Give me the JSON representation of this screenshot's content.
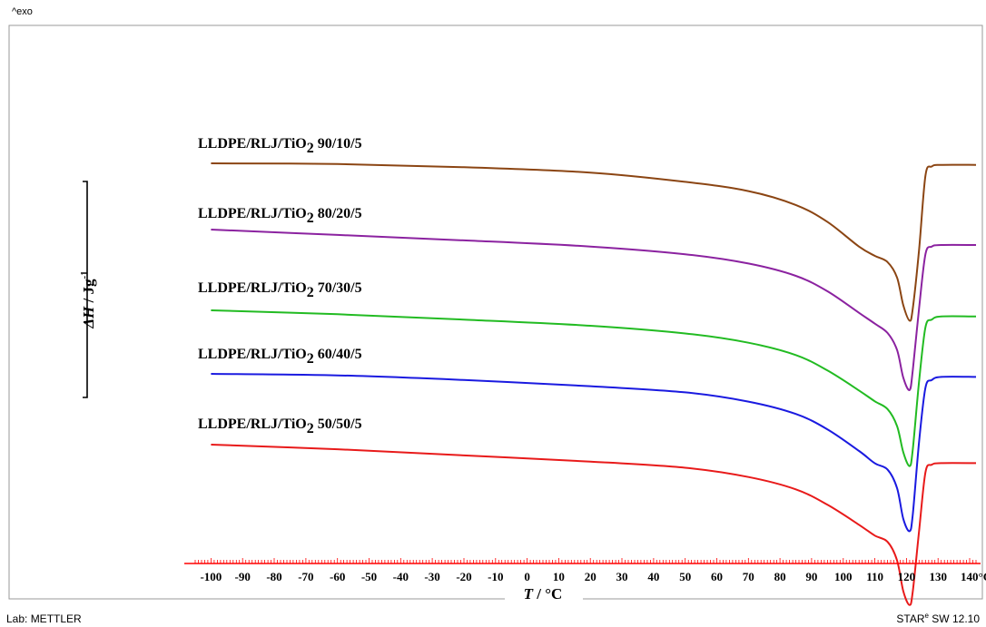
{
  "corner_label": "^exo",
  "footer": {
    "left": "Lab: METTLER",
    "right_brand": "STAR",
    "right_sup": "e",
    "right_version": " SW 12.10"
  },
  "colors": {
    "frame": "#999999",
    "ruler": "#ff0000",
    "axis_line": "#000000"
  },
  "chart_data": {
    "type": "line",
    "xlabel_italic": "T",
    "xlabel_rest": " / °C",
    "ylabel_italic": "ΔH",
    "ylabel_rest": " / Jg",
    "ylabel_sup": "-1",
    "xlim": [
      -105,
      142
    ],
    "y_scale_bar": true,
    "grid": false,
    "x_ticks": [
      {
        "value": -100,
        "label": "-100"
      },
      {
        "value": -90,
        "label": "-90"
      },
      {
        "value": -80,
        "label": "-80"
      },
      {
        "value": -70,
        "label": "-70"
      },
      {
        "value": -60,
        "label": "-60"
      },
      {
        "value": -50,
        "label": "-50"
      },
      {
        "value": -40,
        "label": "-40"
      },
      {
        "value": -30,
        "label": "-30"
      },
      {
        "value": -20,
        "label": "-20"
      },
      {
        "value": -10,
        "label": "-10"
      },
      {
        "value": 0,
        "label": "0"
      },
      {
        "value": 10,
        "label": "10"
      },
      {
        "value": 20,
        "label": "20"
      },
      {
        "value": 30,
        "label": "30"
      },
      {
        "value": 40,
        "label": "40"
      },
      {
        "value": 50,
        "label": "50"
      },
      {
        "value": 60,
        "label": "60"
      },
      {
        "value": 70,
        "label": "70"
      },
      {
        "value": 80,
        "label": "80"
      },
      {
        "value": 90,
        "label": "90"
      },
      {
        "value": 100,
        "label": "100"
      },
      {
        "value": 110,
        "label": "110"
      },
      {
        "value": 120,
        "label": "120"
      },
      {
        "value": 130,
        "label": "130"
      },
      {
        "value": 140,
        "label": "140°C"
      }
    ],
    "series": [
      {
        "label_main": "LLDPE/RLJ/TiO",
        "label_sub": "2",
        "label_ratio": " 90/10/5",
        "color": "#8b4513",
        "x": [
          -100,
          -60,
          -20,
          20,
          50,
          70,
          85,
          95,
          105,
          110,
          114,
          117,
          119,
          121,
          122,
          124,
          126,
          128,
          131,
          142
        ],
        "y": [
          0.6,
          0.55,
          0.35,
          0.0,
          -0.6,
          -1.2,
          -2.1,
          -3.2,
          -4.8,
          -5.4,
          -5.8,
          -6.8,
          -8.6,
          -9.6,
          -8.8,
          -5.0,
          -0.2,
          0.4,
          0.5,
          0.5
        ]
      },
      {
        "label_main": "LLDPE/RLJ/TiO",
        "label_sub": "2",
        "label_ratio": "  80/20/5",
        "color": "#8b22a0",
        "x": [
          -100,
          -60,
          -20,
          20,
          50,
          70,
          85,
          95,
          105,
          110,
          114,
          117,
          119,
          121,
          122,
          124,
          126,
          128,
          131,
          142
        ],
        "y": [
          0.6,
          0.25,
          -0.1,
          -0.5,
          -1.0,
          -1.6,
          -2.4,
          -3.4,
          -4.8,
          -5.5,
          -6.1,
          -7.2,
          -9.0,
          -9.8,
          -8.5,
          -4.5,
          -1.0,
          -0.5,
          -0.4,
          -0.4
        ]
      },
      {
        "label_main": "LLDPE/RLJ/TiO",
        "label_sub": "2",
        "label_ratio": "  70/30/5",
        "color": "#22bb22",
        "x": [
          -100,
          -60,
          -20,
          20,
          50,
          70,
          85,
          95,
          105,
          110,
          114,
          117,
          119,
          121,
          122,
          124,
          126,
          128,
          131,
          142
        ],
        "y": [
          0.6,
          0.35,
          0.0,
          -0.4,
          -0.9,
          -1.5,
          -2.3,
          -3.3,
          -4.6,
          -5.3,
          -5.8,
          -6.9,
          -8.6,
          -9.5,
          -8.4,
          -4.0,
          -0.5,
          0.0,
          0.2,
          0.2
        ]
      },
      {
        "label_main": "LLDPE/RLJ/TiO",
        "label_sub": "2",
        "label_ratio": "  60/40/5",
        "color": "#1a1ae0",
        "x": [
          -100,
          -60,
          -20,
          20,
          50,
          70,
          85,
          95,
          105,
          110,
          114,
          117,
          119,
          121,
          122,
          124,
          126,
          128,
          131,
          142
        ],
        "y": [
          0.6,
          0.5,
          0.2,
          -0.2,
          -0.6,
          -1.2,
          -2.0,
          -3.0,
          -4.4,
          -5.2,
          -5.6,
          -6.8,
          -8.8,
          -9.6,
          -8.5,
          -3.8,
          -0.3,
          0.2,
          0.4,
          0.4
        ]
      },
      {
        "label_main": "LLDPE/RLJ/TiO",
        "label_sub": "2",
        "label_ratio": "  50/50/5",
        "color": "#e81a1a",
        "x": [
          -100,
          -60,
          -20,
          20,
          50,
          70,
          85,
          95,
          105,
          110,
          114,
          117,
          119,
          121,
          122,
          124,
          126,
          128,
          131,
          142
        ],
        "y": [
          0.6,
          0.3,
          -0.1,
          -0.5,
          -0.9,
          -1.5,
          -2.3,
          -3.3,
          -4.6,
          -5.3,
          -5.7,
          -6.9,
          -8.9,
          -9.8,
          -8.9,
          -5.0,
          -1.2,
          -0.7,
          -0.6,
          -0.6
        ]
      }
    ]
  }
}
